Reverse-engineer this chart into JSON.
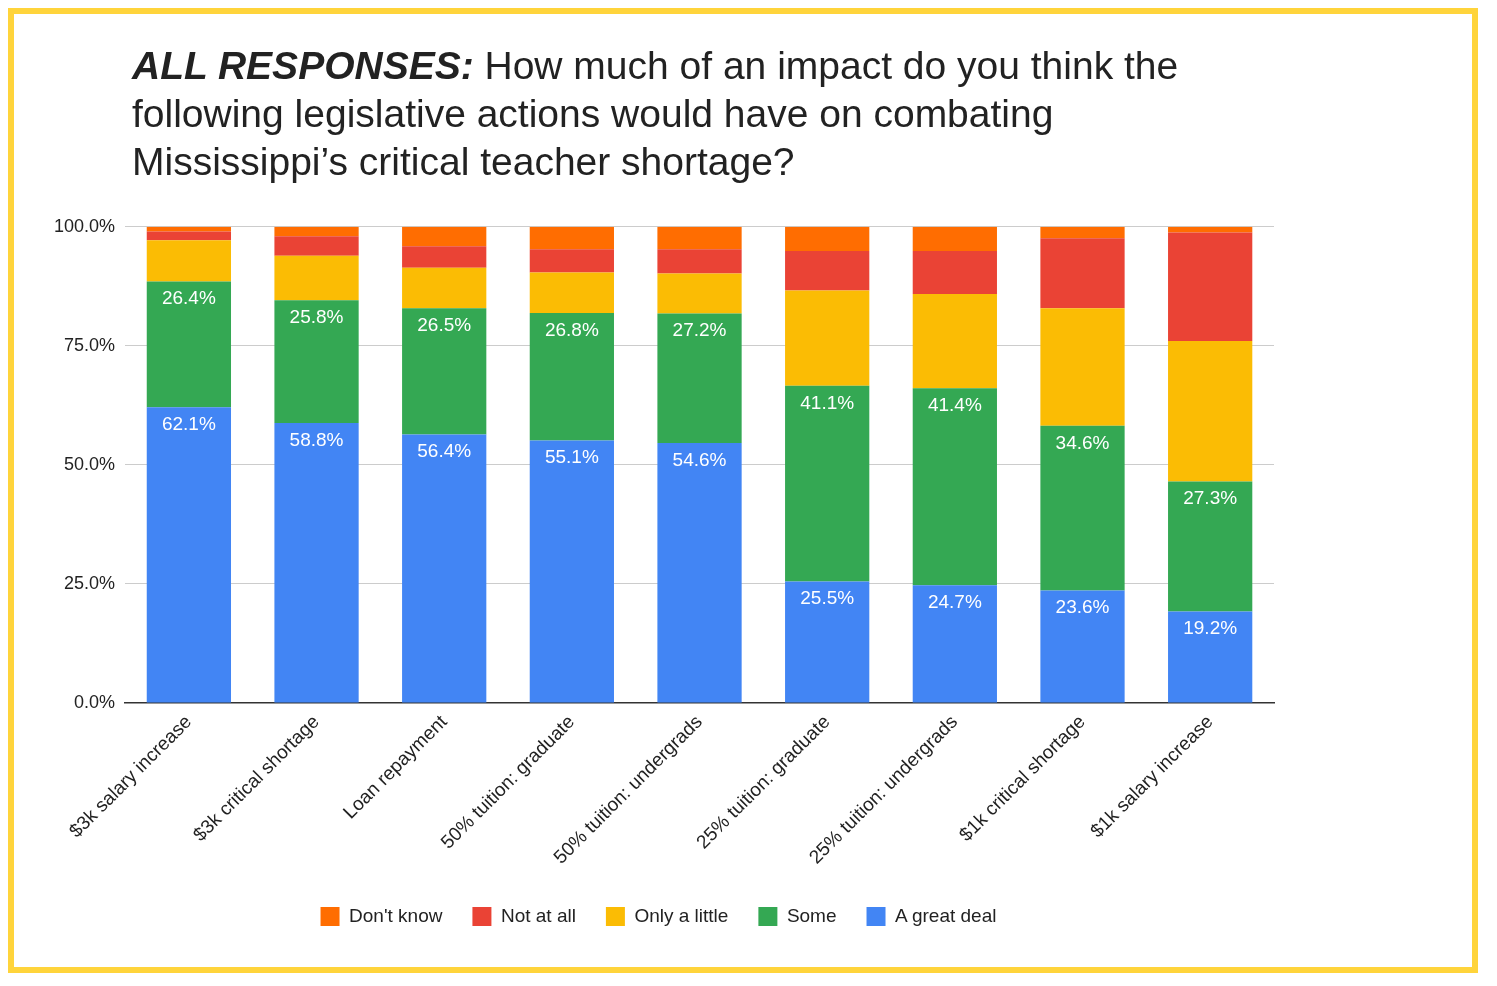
{
  "chart_data": {
    "type": "bar",
    "title": "ALL RESPONSES: How much of an impact do you think the following legislative actions would have on combating Mississippi’s critical teacher shortage?",
    "categories": [
      "$3k salary increase",
      "$3k critical shortage",
      "Loan repayment",
      "50% tuition: graduate",
      "50% tuition: undergrads",
      "25% tuition: graduate",
      "25% tuition: undergrads",
      "$1k critical shortage",
      "$1k salary increase"
    ],
    "stacked": true,
    "legend": "bottom",
    "grid": "y",
    "ylim": [
      0,
      100
    ],
    "yticks": [
      {
        "value": 0,
        "label": "0.0%"
      },
      {
        "value": 25,
        "label": "25.0%"
      },
      {
        "value": 50,
        "label": "50.0%"
      },
      {
        "value": 75,
        "label": "75.0%"
      },
      {
        "value": 100,
        "label": "100.0%"
      }
    ],
    "series": [
      {
        "name": "A great deal",
        "color": "#4285f4",
        "values": [
          62.1,
          58.8,
          56.4,
          55.1,
          54.6,
          25.5,
          24.7,
          23.6,
          19.2
        ],
        "value_labels": [
          "62.1%",
          "58.8%",
          "56.4%",
          "55.1%",
          "54.6%",
          "25.5%",
          "24.7%",
          "23.6%",
          "19.2%"
        ]
      },
      {
        "name": "Some",
        "color": "#34a853",
        "values": [
          26.4,
          25.8,
          26.5,
          26.8,
          27.2,
          41.1,
          41.4,
          34.6,
          27.3
        ],
        "value_labels": [
          "26.4%",
          "25.8%",
          "26.5%",
          "26.8%",
          "27.2%",
          "41.1%",
          "41.4%",
          "34.6%",
          "27.3%"
        ]
      },
      {
        "name": "Only a little",
        "color": "#fbbc04",
        "values": [
          8.7,
          9.3,
          8.5,
          8.5,
          8.4,
          20.0,
          19.8,
          24.7,
          29.5
        ]
      },
      {
        "name": "Not at all",
        "color": "#ea4335",
        "values": [
          1.8,
          4.1,
          4.5,
          4.9,
          5.1,
          8.3,
          9.0,
          14.7,
          22.8
        ]
      },
      {
        "name": "Don't know",
        "color": "#ff6d01",
        "values": [
          1.0,
          2.0,
          4.1,
          4.7,
          4.7,
          5.1,
          5.1,
          2.4,
          1.2
        ]
      }
    ]
  }
}
